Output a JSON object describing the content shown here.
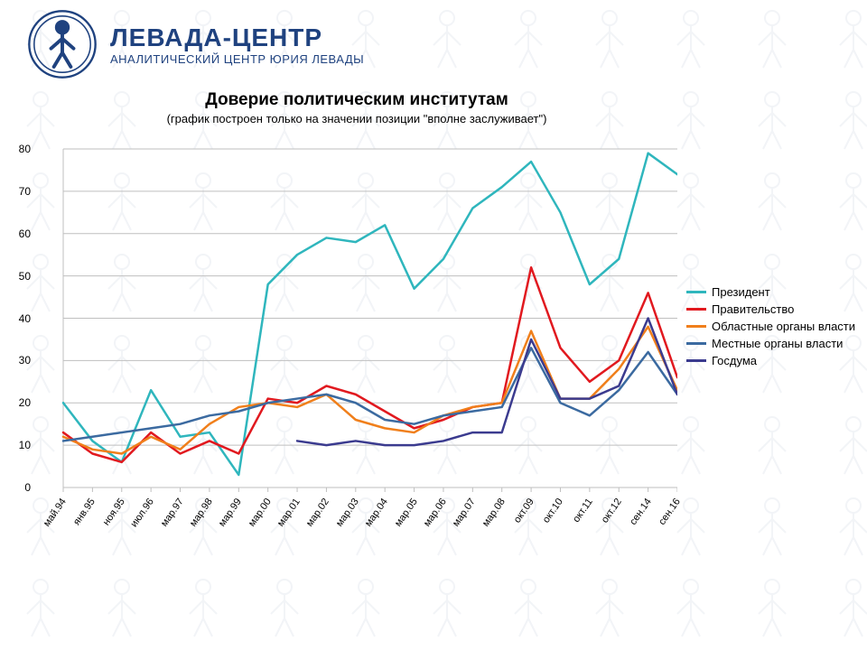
{
  "header": {
    "org_name": "ЛЕВАДА-ЦЕНТР",
    "org_sub": "АНАЛИТИЧЕСКИЙ ЦЕНТР ЮРИЯ ЛЕВАДЫ",
    "logo_stroke": "#1f427f"
  },
  "chart": {
    "type": "line",
    "title": "Доверие политическим институтам",
    "subtitle": "(график построен только на значении позиции \"вполне заслуживает\")",
    "background_color": "#ffffff",
    "grid_color": "#bfbfbf",
    "line_width": 2.5,
    "ylim": [
      0,
      80
    ],
    "ytick_step": 10,
    "title_fontsize": 19,
    "subtitle_fontsize": 13,
    "tick_fontsize": 12,
    "xtick_rotation_deg": -55,
    "x_labels": [
      "май.94",
      "янв.95",
      "ноя.95",
      "июл.96",
      "мар.97",
      "мар.98",
      "мар.99",
      "мар.00",
      "мар.01",
      "мар.02",
      "мар.03",
      "мар.04",
      "мар.05",
      "мар.06",
      "мар.07",
      "мар.08",
      "окт.09",
      "окт.10",
      "окт.11",
      "окт.12",
      "сен.14",
      "сен.16"
    ],
    "series": [
      {
        "name": "Президент",
        "color": "#2fb6bd",
        "values": [
          20,
          11,
          6,
          23,
          12,
          13,
          3,
          48,
          55,
          59,
          58,
          62,
          47,
          54,
          66,
          71,
          77,
          65,
          48,
          54,
          79,
          74
        ]
      },
      {
        "name": "Правительство",
        "color": "#e1191f",
        "values": [
          13,
          8,
          6,
          13,
          8,
          11,
          8,
          21,
          20,
          24,
          22,
          18,
          14,
          16,
          19,
          20,
          52,
          33,
          25,
          30,
          46,
          26
        ]
      },
      {
        "name": "Областные органы власти",
        "color": "#f07f1b",
        "values": [
          12,
          9,
          8,
          12,
          9,
          15,
          19,
          20,
          19,
          22,
          16,
          14,
          13,
          17,
          19,
          20,
          37,
          21,
          21,
          28,
          38,
          23
        ]
      },
      {
        "name": "Местные органы власти",
        "color": "#3b6aa0",
        "values": [
          11,
          12,
          13,
          14,
          15,
          17,
          18,
          20,
          21,
          22,
          20,
          16,
          15,
          17,
          18,
          19,
          33,
          20,
          17,
          23,
          32,
          22
        ]
      },
      {
        "name": "Госдума",
        "color": "#3b3b8f",
        "values": [
          null,
          null,
          null,
          null,
          null,
          null,
          null,
          null,
          11,
          10,
          11,
          10,
          10,
          11,
          13,
          13,
          35,
          21,
          21,
          24,
          40,
          22
        ]
      }
    ],
    "legend": {
      "position": "right",
      "fontsize": 13
    }
  }
}
